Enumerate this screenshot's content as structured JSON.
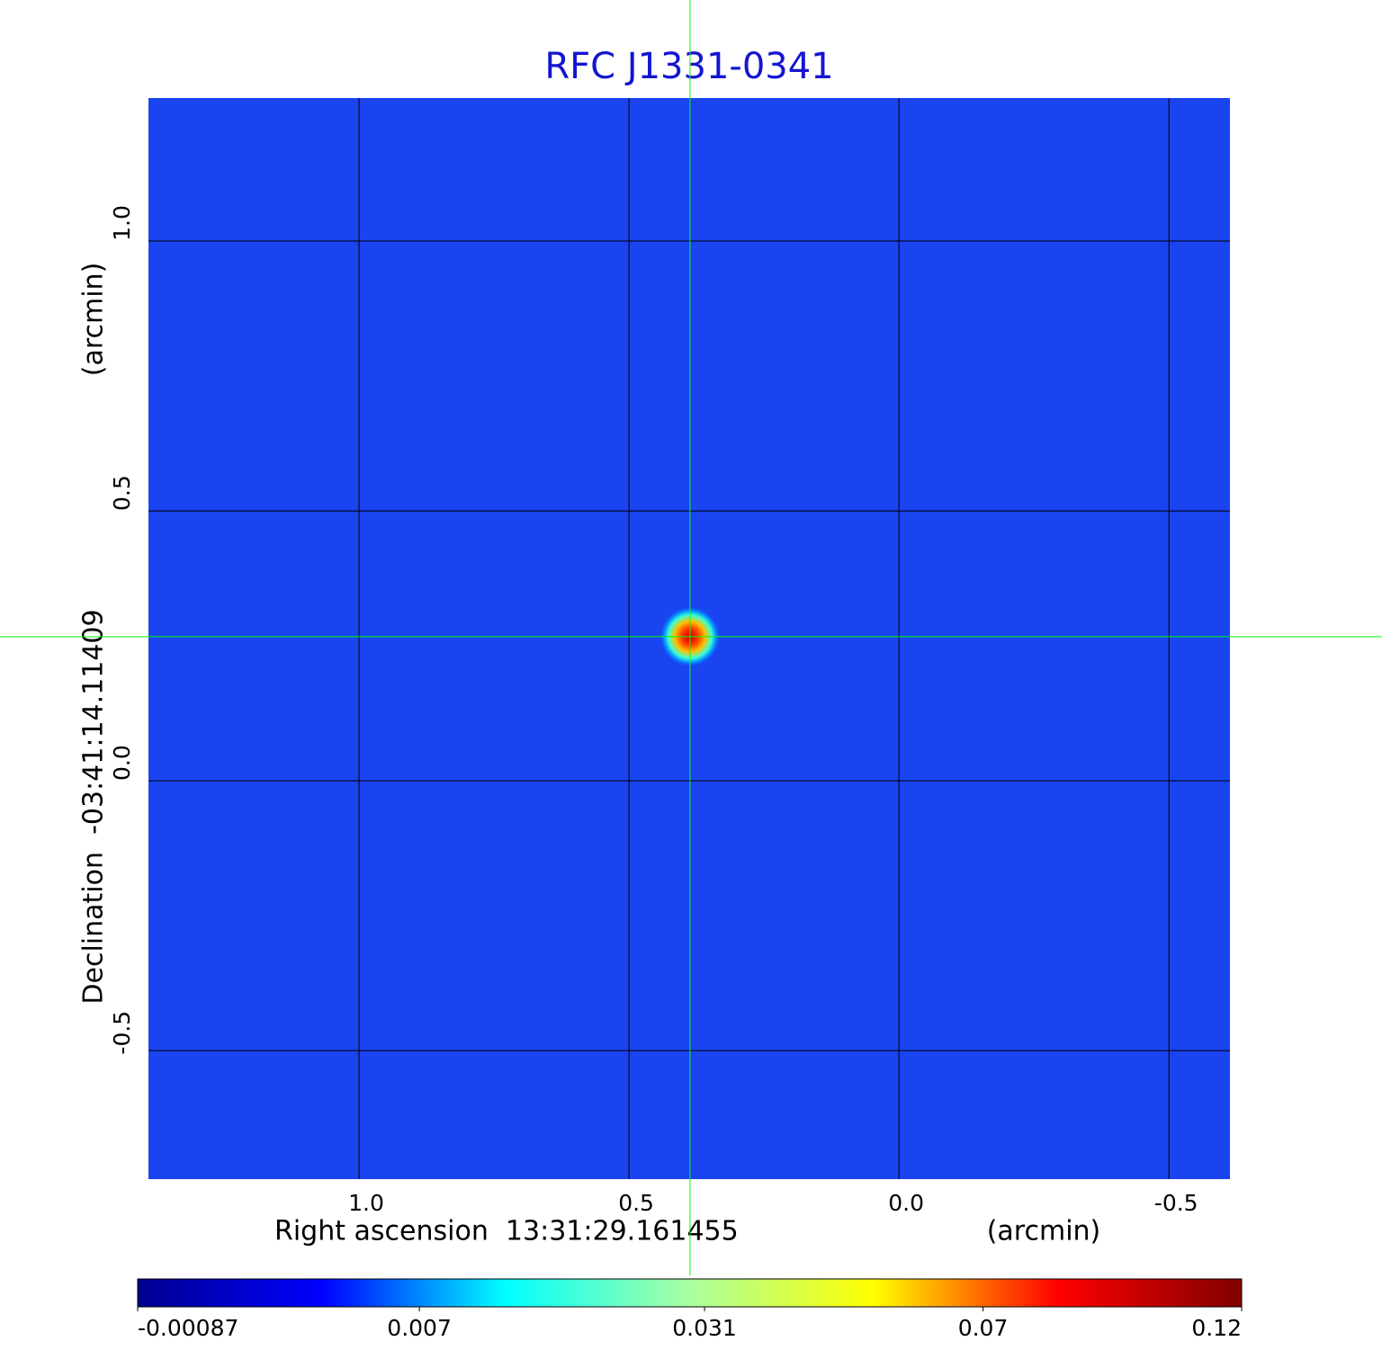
{
  "chart_data": {
    "type": "image",
    "title": "RFC J1331-0341",
    "x_label": "Right ascension  13:31:29.161455",
    "x_unit": "(arcmin)",
    "y_label": "Declination  -03:41:14.11409",
    "y_unit": "(arcmin)",
    "xlim": [
      1.39,
      -0.613
    ],
    "ylim": [
      -0.738,
      1.265
    ],
    "xticks": [
      {
        "value": 1,
        "label": "1.0"
      },
      0.5,
      {
        "value": 0,
        "label": "0.0"
      },
      -0.5
    ],
    "yticks": [
      {
        "value": 1,
        "label": "1.0"
      },
      0.5,
      {
        "value": 0,
        "label": "0.0"
      },
      -0.5
    ],
    "grid": true,
    "grid_color": "#000000",
    "crosshair": {
      "x": 0.387,
      "y": 0.267,
      "color": "#00ff00"
    },
    "colorbar": {
      "lim": [
        -0.00087,
        0.12
      ],
      "scale": "sqrt",
      "ticks": [
        -0.00087,
        0.007,
        0.031,
        0.07,
        0.12
      ],
      "colormap": [
        "#00008f",
        "#0000ff",
        "#00ffff",
        "#aaffa0",
        "#ffff00",
        "#ff0000",
        "#800000"
      ]
    }
  }
}
